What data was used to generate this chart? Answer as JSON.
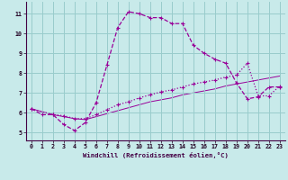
{
  "xlabel": "Windchill (Refroidissement éolien,°C)",
  "background_color": "#c8eaea",
  "grid_color": "#99cccc",
  "line_color": "#990099",
  "xlim": [
    -0.5,
    23.5
  ],
  "ylim": [
    4.6,
    11.6
  ],
  "yticks": [
    5,
    6,
    7,
    8,
    9,
    10,
    11
  ],
  "xticks": [
    0,
    1,
    2,
    3,
    4,
    5,
    6,
    7,
    8,
    9,
    10,
    11,
    12,
    13,
    14,
    15,
    16,
    17,
    18,
    19,
    20,
    21,
    22,
    23
  ],
  "series1_x": [
    0,
    1,
    2,
    3,
    4,
    5,
    6,
    7,
    8,
    9,
    10,
    11,
    12,
    13,
    14,
    15,
    16,
    17,
    18,
    19,
    20,
    21,
    22,
    23
  ],
  "series1_y": [
    6.2,
    5.9,
    5.9,
    5.4,
    5.1,
    5.5,
    6.5,
    8.4,
    10.3,
    11.1,
    11.0,
    10.8,
    10.8,
    10.5,
    10.5,
    9.4,
    9.0,
    8.7,
    8.5,
    7.5,
    6.7,
    6.8,
    7.3,
    7.3
  ],
  "series2_x": [
    0,
    2,
    3,
    4,
    5,
    6,
    7,
    8,
    9,
    10,
    11,
    12,
    13,
    14,
    15,
    16,
    17,
    18,
    19,
    20,
    21,
    22,
    23
  ],
  "series2_y": [
    6.2,
    5.9,
    5.85,
    5.7,
    5.7,
    5.9,
    6.15,
    6.4,
    6.55,
    6.75,
    6.9,
    7.05,
    7.15,
    7.3,
    7.45,
    7.55,
    7.65,
    7.8,
    7.9,
    8.5,
    6.85,
    6.85,
    7.35
  ],
  "series3_x": [
    0,
    2,
    3,
    4,
    5,
    6,
    7,
    8,
    9,
    10,
    11,
    12,
    13,
    14,
    15,
    16,
    17,
    18,
    19,
    20,
    21,
    22,
    23
  ],
  "series3_y": [
    6.2,
    5.9,
    5.8,
    5.7,
    5.65,
    5.8,
    5.95,
    6.1,
    6.25,
    6.4,
    6.55,
    6.65,
    6.75,
    6.9,
    7.0,
    7.1,
    7.2,
    7.35,
    7.45,
    7.55,
    7.65,
    7.75,
    7.85
  ]
}
